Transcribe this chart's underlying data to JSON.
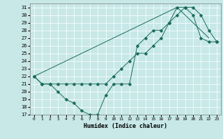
{
  "xlabel": "Humidex (Indice chaleur)",
  "bg_color": "#c8e8e8",
  "line_color": "#1a6b5a",
  "xlim": [
    -0.5,
    23.5
  ],
  "ylim": [
    17,
    31.5
  ],
  "xticks": [
    0,
    1,
    2,
    3,
    4,
    5,
    6,
    7,
    8,
    9,
    10,
    11,
    12,
    13,
    14,
    15,
    16,
    17,
    18,
    19,
    20,
    21,
    22,
    23
  ],
  "yticks": [
    17,
    18,
    19,
    20,
    21,
    22,
    23,
    24,
    25,
    26,
    27,
    28,
    29,
    30,
    31
  ],
  "line1_x": [
    0,
    1,
    2,
    3,
    4,
    5,
    6,
    7,
    8,
    9,
    10,
    11,
    12,
    13,
    14,
    15,
    16,
    17,
    18,
    19,
    20,
    21,
    22,
    23
  ],
  "line1_y": [
    22,
    21,
    21,
    20,
    19,
    18.5,
    17.5,
    17,
    17,
    19.5,
    21,
    21,
    21,
    26,
    27,
    28,
    28,
    29,
    31,
    31,
    30,
    27,
    26.5,
    26.5
  ],
  "line2_x": [
    0,
    1,
    2,
    3,
    4,
    5,
    6,
    7,
    8,
    9,
    10,
    11,
    12,
    13,
    14,
    15,
    16,
    17,
    18,
    19,
    20,
    21,
    22,
    23
  ],
  "line2_y": [
    22,
    21,
    21,
    21,
    21,
    21,
    21,
    21,
    21,
    21,
    22,
    23,
    24,
    25,
    25,
    26,
    27,
    29,
    30,
    31,
    31,
    30,
    28,
    26.5
  ],
  "line3_x": [
    0,
    18,
    22
  ],
  "line3_y": [
    22,
    31,
    27
  ],
  "markersize": 2.5
}
